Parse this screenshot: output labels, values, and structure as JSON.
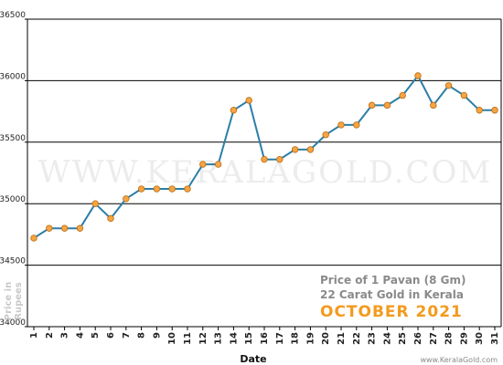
{
  "chart_data": {
    "type": "line",
    "xlabel": "Date",
    "ylabel": "Price in Rupees",
    "ylim": [
      34000,
      36500
    ],
    "yticks": [
      34000,
      34500,
      35000,
      35500,
      36000,
      36500
    ],
    "grid": "horizontal",
    "x": [
      1,
      2,
      3,
      4,
      5,
      6,
      7,
      8,
      9,
      10,
      11,
      12,
      13,
      14,
      15,
      16,
      17,
      18,
      19,
      20,
      21,
      22,
      23,
      24,
      25,
      26,
      27,
      28,
      29,
      30,
      31
    ],
    "values": [
      34720,
      34800,
      34800,
      34800,
      35000,
      34880,
      35040,
      35120,
      35120,
      35120,
      35120,
      35320,
      35320,
      35760,
      35840,
      35360,
      35360,
      35440,
      35440,
      35560,
      35640,
      35640,
      35800,
      35800,
      35880,
      36040,
      35800,
      35960,
      35880,
      35760,
      35760
    ],
    "line_color": "#2a7fa8",
    "marker_color": "#f7a442"
  },
  "watermark": "WWW.KERALAGOLD.COM",
  "info": {
    "line1": "Price of 1 Pavan (8 Gm)",
    "line2": "22 Carat Gold in Kerala",
    "line3": "OCTOBER 2021"
  },
  "credit": "www.KeralaGold.com"
}
